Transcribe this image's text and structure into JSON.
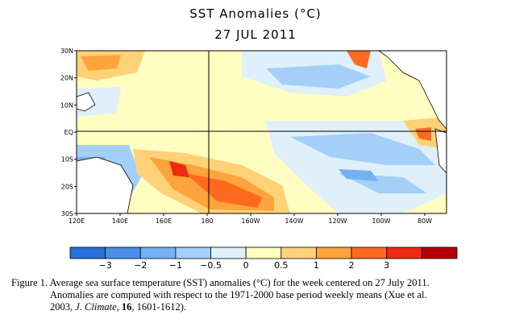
{
  "title": "SST Anomalies (°C)",
  "date": "27 JUL 2011",
  "map": {
    "lat_labels": [
      "30N",
      "20N",
      "10N",
      "EQ",
      "10S",
      "20S",
      "30S"
    ],
    "lon_labels": [
      "120E",
      "140E",
      "160E",
      "180",
      "160W",
      "140W",
      "120W",
      "100W",
      "80W"
    ],
    "lat_range": [
      -30,
      30
    ],
    "lon_range": [
      120,
      290
    ]
  },
  "colorbar": {
    "labels": [
      "−3",
      "−2",
      "−1",
      "−0.5",
      "0",
      "0.5",
      "1",
      "2",
      "3"
    ],
    "colors": [
      "#2b6fd8",
      "#4a8ee8",
      "#74b0f2",
      "#a3cff8",
      "#dff0fb",
      "#fffec0",
      "#ffd278",
      "#ffa33d",
      "#ff6a20",
      "#ee2a10",
      "#b4000a"
    ]
  },
  "caption": {
    "line1": "Figure 1. Average sea surface temperature (SST) anomalies (°C) for the week centered on 27 July 2011.",
    "line2": "Anomalies are computed with respect to the 1971-2000 base period weekly means (Xue et al.",
    "line3_a": "2003, ",
    "line3_journal": "J. Climate",
    "line3_b": ", ",
    "line3_vol": "16",
    "line3_c": ", 1601-1612)."
  }
}
